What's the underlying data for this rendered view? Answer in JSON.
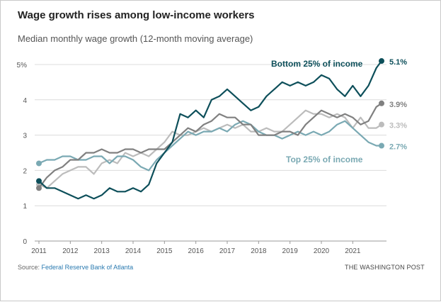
{
  "title": "Wage growth rises among low-income workers",
  "subtitle": "Median monthly wage growth (12-month moving average)",
  "source_prefix": "Source:",
  "source_name": "Federal Reserve Bank of Atlanta",
  "credit": "THE WASHINGTON POST",
  "colors": {
    "dark_teal": "#0d4f5a",
    "dark_gray": "#808080",
    "light_gray": "#bcbcbc",
    "light_teal": "#7aa9b3",
    "grid": "#dcdcdc",
    "axis_text": "#555555"
  },
  "chart_data": {
    "type": "line",
    "title": "Wage growth rises among low-income workers",
    "subtitle": "Median monthly wage growth (12-month moving average)",
    "xlabel": "",
    "ylabel": "",
    "xlim": [
      2011.0,
      2021.917
    ],
    "ylim": [
      0,
      5
    ],
    "y_ticks": [
      "0",
      "1",
      "2",
      "3",
      "4",
      "5%"
    ],
    "x_ticks": [
      "2011",
      "2012",
      "2013",
      "2014",
      "2015",
      "2016",
      "2017",
      "2018",
      "2019",
      "2020",
      "2021"
    ],
    "grid": true,
    "legend": "direct labels at line ends",
    "series": [
      {
        "name": "Bottom 25% of income",
        "color": "#0d4f5a",
        "end_label": "5.1%",
        "points": [
          [
            2011.0,
            1.7
          ],
          [
            2011.25,
            1.5
          ],
          [
            2011.5,
            1.5
          ],
          [
            2011.75,
            1.4
          ],
          [
            2012.0,
            1.3
          ],
          [
            2012.25,
            1.2
          ],
          [
            2012.5,
            1.3
          ],
          [
            2012.75,
            1.2
          ],
          [
            2013.0,
            1.3
          ],
          [
            2013.25,
            1.5
          ],
          [
            2013.5,
            1.4
          ],
          [
            2013.75,
            1.4
          ],
          [
            2014.0,
            1.5
          ],
          [
            2014.25,
            1.4
          ],
          [
            2014.5,
            1.6
          ],
          [
            2014.75,
            2.2
          ],
          [
            2015.0,
            2.5
          ],
          [
            2015.25,
            2.8
          ],
          [
            2015.5,
            3.6
          ],
          [
            2015.75,
            3.5
          ],
          [
            2016.0,
            3.7
          ],
          [
            2016.25,
            3.5
          ],
          [
            2016.5,
            4.0
          ],
          [
            2016.75,
            4.1
          ],
          [
            2017.0,
            4.3
          ],
          [
            2017.25,
            4.1
          ],
          [
            2017.5,
            3.9
          ],
          [
            2017.75,
            3.7
          ],
          [
            2018.0,
            3.8
          ],
          [
            2018.25,
            4.1
          ],
          [
            2018.5,
            4.3
          ],
          [
            2018.75,
            4.5
          ],
          [
            2019.0,
            4.4
          ],
          [
            2019.25,
            4.5
          ],
          [
            2019.5,
            4.4
          ],
          [
            2019.75,
            4.5
          ],
          [
            2020.0,
            4.7
          ],
          [
            2020.25,
            4.6
          ],
          [
            2020.5,
            4.3
          ],
          [
            2020.75,
            4.1
          ],
          [
            2021.0,
            4.4
          ],
          [
            2021.25,
            4.1
          ],
          [
            2021.5,
            4.4
          ],
          [
            2021.75,
            4.9
          ],
          [
            2021.917,
            5.1
          ]
        ]
      },
      {
        "name": "",
        "color": "#808080",
        "end_label": "3.9%",
        "points": [
          [
            2011.0,
            1.5
          ],
          [
            2011.25,
            1.8
          ],
          [
            2011.5,
            2.0
          ],
          [
            2011.75,
            2.1
          ],
          [
            2012.0,
            2.3
          ],
          [
            2012.25,
            2.3
          ],
          [
            2012.5,
            2.5
          ],
          [
            2012.75,
            2.5
          ],
          [
            2013.0,
            2.6
          ],
          [
            2013.25,
            2.5
          ],
          [
            2013.5,
            2.5
          ],
          [
            2013.75,
            2.6
          ],
          [
            2014.0,
            2.6
          ],
          [
            2014.25,
            2.5
          ],
          [
            2014.5,
            2.6
          ],
          [
            2014.75,
            2.6
          ],
          [
            2015.0,
            2.6
          ],
          [
            2015.25,
            2.8
          ],
          [
            2015.5,
            3.0
          ],
          [
            2015.75,
            3.2
          ],
          [
            2016.0,
            3.1
          ],
          [
            2016.25,
            3.3
          ],
          [
            2016.5,
            3.4
          ],
          [
            2016.75,
            3.6
          ],
          [
            2017.0,
            3.5
          ],
          [
            2017.25,
            3.5
          ],
          [
            2017.5,
            3.3
          ],
          [
            2017.75,
            3.3
          ],
          [
            2018.0,
            3.0
          ],
          [
            2018.25,
            3.0
          ],
          [
            2018.5,
            3.0
          ],
          [
            2018.75,
            3.1
          ],
          [
            2019.0,
            3.1
          ],
          [
            2019.25,
            3.0
          ],
          [
            2019.5,
            3.3
          ],
          [
            2019.75,
            3.5
          ],
          [
            2020.0,
            3.7
          ],
          [
            2020.25,
            3.6
          ],
          [
            2020.5,
            3.5
          ],
          [
            2020.75,
            3.6
          ],
          [
            2021.0,
            3.5
          ],
          [
            2021.25,
            3.3
          ],
          [
            2021.5,
            3.4
          ],
          [
            2021.75,
            3.8
          ],
          [
            2021.917,
            3.9
          ]
        ]
      },
      {
        "name": "",
        "color": "#bcbcbc",
        "end_label": "3.3%",
        "points": [
          [
            2011.0,
            1.6
          ],
          [
            2011.25,
            1.5
          ],
          [
            2011.5,
            1.7
          ],
          [
            2011.75,
            1.9
          ],
          [
            2012.0,
            2.0
          ],
          [
            2012.25,
            2.1
          ],
          [
            2012.5,
            2.1
          ],
          [
            2012.75,
            1.9
          ],
          [
            2013.0,
            2.2
          ],
          [
            2013.25,
            2.3
          ],
          [
            2013.5,
            2.2
          ],
          [
            2013.75,
            2.5
          ],
          [
            2014.0,
            2.4
          ],
          [
            2014.25,
            2.5
          ],
          [
            2014.5,
            2.4
          ],
          [
            2014.75,
            2.6
          ],
          [
            2015.0,
            2.8
          ],
          [
            2015.25,
            3.1
          ],
          [
            2015.5,
            3.0
          ],
          [
            2015.75,
            3.0
          ],
          [
            2016.0,
            3.1
          ],
          [
            2016.25,
            3.2
          ],
          [
            2016.5,
            3.1
          ],
          [
            2016.75,
            3.2
          ],
          [
            2017.0,
            3.3
          ],
          [
            2017.25,
            3.2
          ],
          [
            2017.5,
            3.3
          ],
          [
            2017.75,
            3.1
          ],
          [
            2018.0,
            3.1
          ],
          [
            2018.25,
            3.2
          ],
          [
            2018.5,
            3.1
          ],
          [
            2018.75,
            3.1
          ],
          [
            2019.0,
            3.3
          ],
          [
            2019.25,
            3.5
          ],
          [
            2019.5,
            3.7
          ],
          [
            2019.75,
            3.6
          ],
          [
            2020.0,
            3.6
          ],
          [
            2020.25,
            3.5
          ],
          [
            2020.5,
            3.6
          ],
          [
            2020.75,
            3.5
          ],
          [
            2021.0,
            3.2
          ],
          [
            2021.25,
            3.5
          ],
          [
            2021.5,
            3.2
          ],
          [
            2021.75,
            3.2
          ],
          [
            2021.917,
            3.3
          ]
        ]
      },
      {
        "name": "Top 25% of income",
        "color": "#7aa9b3",
        "end_label": "2.7%",
        "points": [
          [
            2011.0,
            2.2
          ],
          [
            2011.25,
            2.3
          ],
          [
            2011.5,
            2.3
          ],
          [
            2011.75,
            2.4
          ],
          [
            2012.0,
            2.4
          ],
          [
            2012.25,
            2.3
          ],
          [
            2012.5,
            2.3
          ],
          [
            2012.75,
            2.4
          ],
          [
            2013.0,
            2.4
          ],
          [
            2013.25,
            2.2
          ],
          [
            2013.5,
            2.4
          ],
          [
            2013.75,
            2.4
          ],
          [
            2014.0,
            2.3
          ],
          [
            2014.25,
            2.1
          ],
          [
            2014.5,
            2.0
          ],
          [
            2014.75,
            2.3
          ],
          [
            2015.0,
            2.5
          ],
          [
            2015.25,
            2.7
          ],
          [
            2015.5,
            2.9
          ],
          [
            2015.75,
            3.1
          ],
          [
            2016.0,
            3.0
          ],
          [
            2016.25,
            3.1
          ],
          [
            2016.5,
            3.1
          ],
          [
            2016.75,
            3.2
          ],
          [
            2017.0,
            3.1
          ],
          [
            2017.25,
            3.3
          ],
          [
            2017.5,
            3.4
          ],
          [
            2017.75,
            3.3
          ],
          [
            2018.0,
            3.1
          ],
          [
            2018.25,
            3.0
          ],
          [
            2018.5,
            3.0
          ],
          [
            2018.75,
            2.9
          ],
          [
            2019.0,
            3.0
          ],
          [
            2019.25,
            3.1
          ],
          [
            2019.5,
            3.0
          ],
          [
            2019.75,
            3.1
          ],
          [
            2020.0,
            3.0
          ],
          [
            2020.25,
            3.1
          ],
          [
            2020.5,
            3.3
          ],
          [
            2020.75,
            3.4
          ],
          [
            2021.0,
            3.2
          ],
          [
            2021.25,
            3.0
          ],
          [
            2021.5,
            2.8
          ],
          [
            2021.75,
            2.7
          ],
          [
            2021.917,
            2.7
          ]
        ]
      }
    ]
  }
}
